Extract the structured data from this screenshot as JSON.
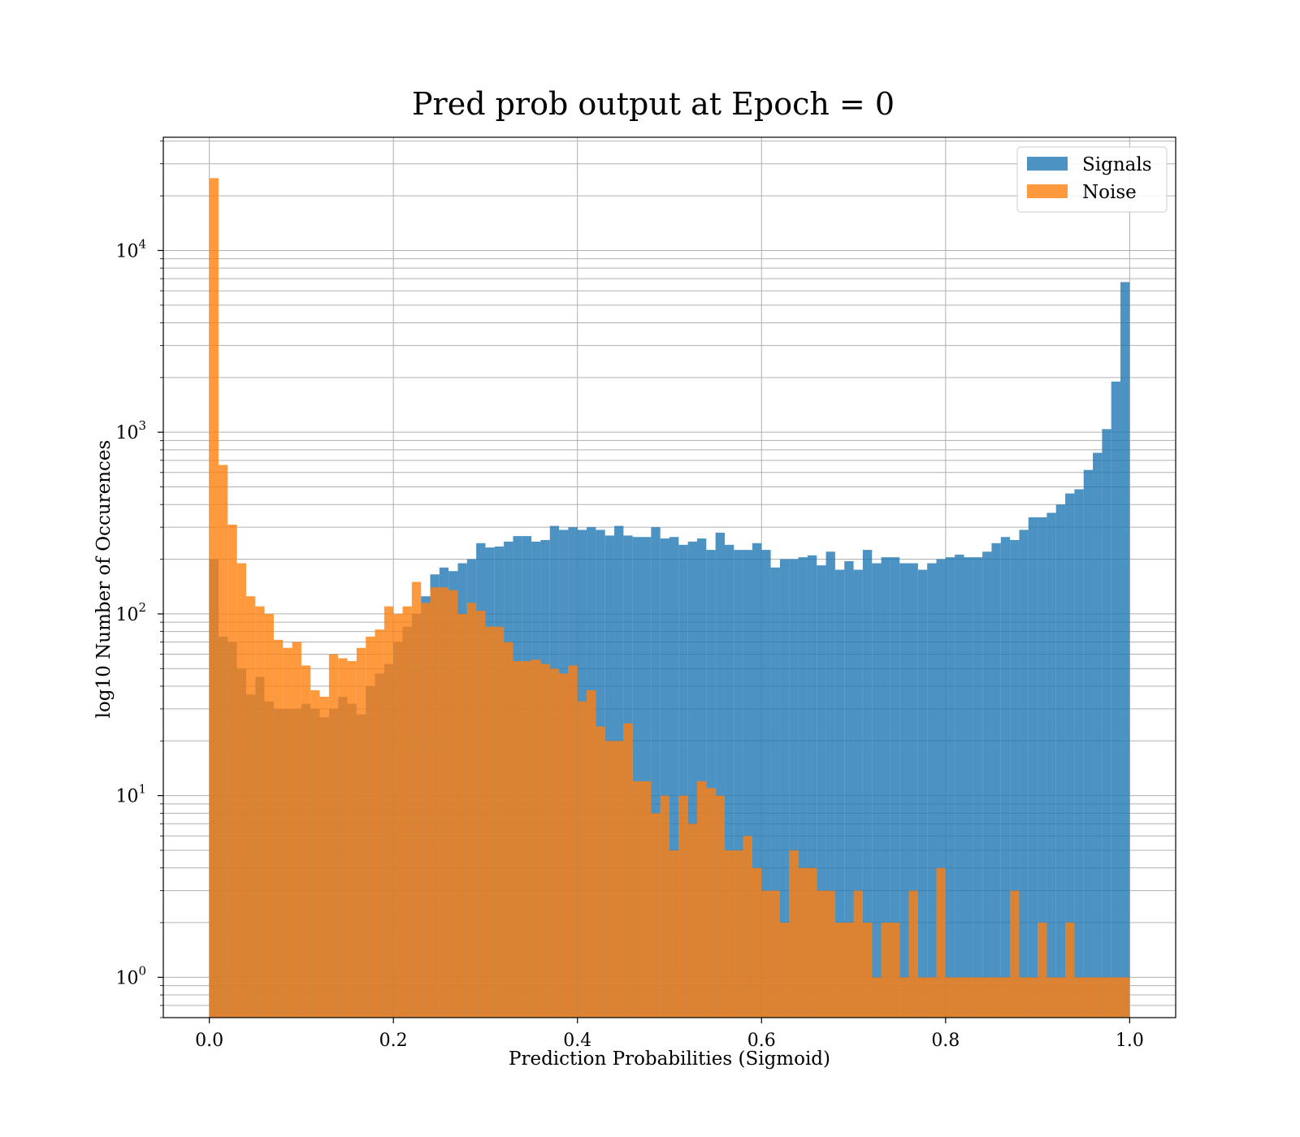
{
  "chart_data": {
    "type": "bar",
    "title": "Pred prob output at Epoch = 0",
    "xlabel": "Prediction Probabilities (Sigmoid)",
    "ylabel": "log10 Number of Occurences",
    "xlim": [
      -0.05,
      1.05
    ],
    "ylim": [
      0.6,
      42000
    ],
    "yscale": "log",
    "grid": true,
    "legend_position": "top-right",
    "bins": {
      "start": 0.0,
      "end": 1.0,
      "count": 100
    },
    "x_ticks": [
      {
        "value": 0.0,
        "label": "0.0"
      },
      {
        "value": 0.2,
        "label": "0.2"
      },
      {
        "value": 0.4,
        "label": "0.4"
      },
      {
        "value": 0.6,
        "label": "0.6"
      },
      {
        "value": 0.8,
        "label": "0.8"
      },
      {
        "value": 1.0,
        "label": "1.0"
      }
    ],
    "y_ticks": [
      {
        "value": 1,
        "base": "10",
        "exp": "0"
      },
      {
        "value": 10,
        "base": "10",
        "exp": "1"
      },
      {
        "value": 100,
        "base": "10",
        "exp": "2"
      },
      {
        "value": 1000,
        "base": "10",
        "exp": "3"
      },
      {
        "value": 10000,
        "base": "10",
        "exp": "4"
      }
    ],
    "series": [
      {
        "name": "Signals",
        "color": "#1f77b4",
        "opacity": 0.8,
        "values": [
          200,
          75,
          70,
          50,
          36,
          45,
          33,
          30,
          30,
          30,
          32,
          30,
          27,
          30,
          35,
          32,
          28,
          40,
          47,
          53,
          70,
          85,
          100,
          125,
          165,
          180,
          172,
          190,
          200,
          245,
          232,
          235,
          250,
          268,
          268,
          250,
          255,
          305,
          290,
          300,
          290,
          300,
          290,
          270,
          305,
          270,
          265,
          265,
          300,
          260,
          265,
          240,
          250,
          260,
          225,
          280,
          240,
          225,
          225,
          245,
          225,
          180,
          200,
          200,
          205,
          210,
          185,
          220,
          175,
          195,
          175,
          225,
          190,
          205,
          205,
          190,
          190,
          175,
          190,
          200,
          205,
          212,
          205,
          205,
          220,
          245,
          265,
          255,
          290,
          340,
          340,
          360,
          400,
          460,
          485,
          620,
          770,
          1040,
          1900,
          6700
        ]
      },
      {
        "name": "Noise",
        "color": "#ff7f0e",
        "opacity": 0.8,
        "values": [
          25000,
          660,
          310,
          190,
          125,
          110,
          100,
          72,
          65,
          70,
          52,
          38,
          35,
          60,
          57,
          55,
          65,
          75,
          82,
          110,
          100,
          110,
          150,
          115,
          140,
          140,
          135,
          100,
          115,
          104,
          85,
          85,
          70,
          55,
          55,
          56,
          53,
          50,
          47,
          52,
          33,
          38,
          24,
          20,
          20,
          25,
          12,
          12,
          8,
          10,
          5,
          10,
          7,
          12,
          11,
          10,
          5,
          5,
          6,
          4,
          3,
          3,
          2,
          5,
          4,
          4,
          3,
          3,
          2,
          2,
          3,
          2,
          1,
          2,
          2,
          1,
          3,
          1,
          1,
          4,
          1,
          1,
          1,
          1,
          1,
          1,
          1,
          3,
          1,
          1,
          2,
          1,
          1,
          2,
          1,
          1,
          1,
          1,
          1,
          1
        ]
      }
    ]
  }
}
